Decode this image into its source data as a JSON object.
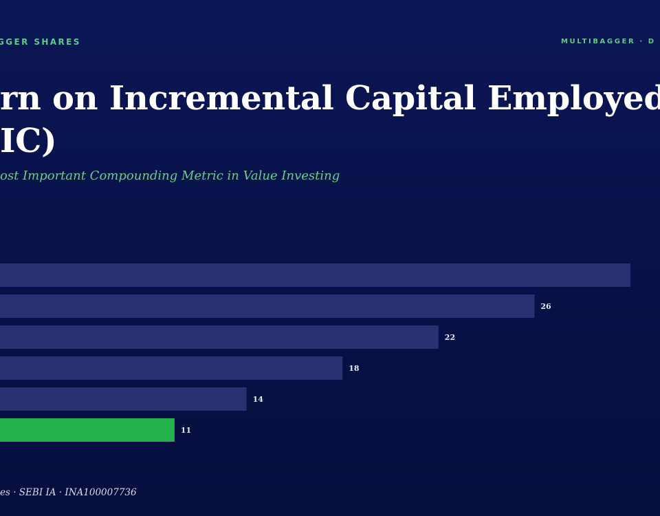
{
  "header": {
    "brand_left": "GGER SHARES",
    "brand_right": "MULTIBAGGER · D",
    "title_line1": "rn on Incremental Capital Employed",
    "title_line2": "IC)",
    "subtitle": "ost Important Compounding Metric in Value Investing"
  },
  "footer": {
    "text": "es · SEBI IA · INA100007736"
  },
  "colors": {
    "bar": "#283272",
    "highlight": "#22b14c",
    "label": "#e8ecf7",
    "accent": "#62c98a"
  },
  "chart_data": {
    "type": "bar",
    "orientation": "horizontal",
    "values": [
      30,
      26,
      22,
      18,
      14,
      11
    ],
    "data_labels": [
      "",
      "26",
      "22",
      "18",
      "14",
      "11"
    ],
    "highlight_index": 5,
    "xlim": [
      0,
      30
    ]
  }
}
